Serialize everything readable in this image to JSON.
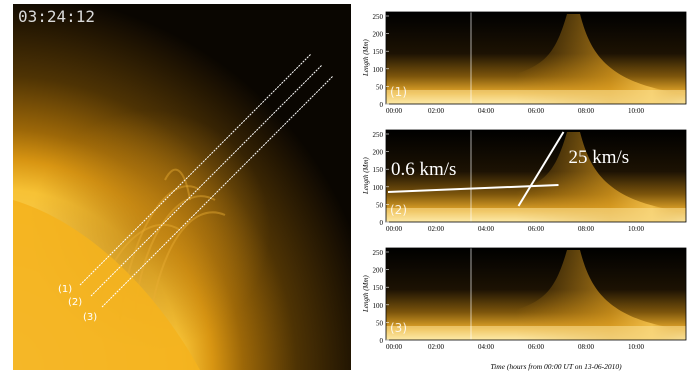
{
  "left_image": {
    "timestamp": "03:24:12",
    "slit_labels": [
      "(1)",
      "(2)",
      "(3)"
    ]
  },
  "panels": [
    {
      "label": "(1)",
      "ylabel": "Length (Mm)"
    },
    {
      "label": "(2)",
      "ylabel": "Length (Mm)"
    },
    {
      "label": "(3)",
      "ylabel": "Length (Mm)"
    }
  ],
  "y_ticks": [
    "0",
    "50",
    "100",
    "150",
    "200",
    "250"
  ],
  "x_ticks": [
    "00:00",
    "02:00",
    "04:00",
    "06:00",
    "08:00",
    "10:00"
  ],
  "xlabel": "Time (hours from 00:00 UT on 13-06-2010)",
  "speed_labels": {
    "slow": "0.6 km/s",
    "fast": "25 km/s"
  },
  "colors": {
    "sun": "#f2b21a",
    "corona": "#6b4a08",
    "background": "#000000",
    "annotation": "#ffffff"
  }
}
